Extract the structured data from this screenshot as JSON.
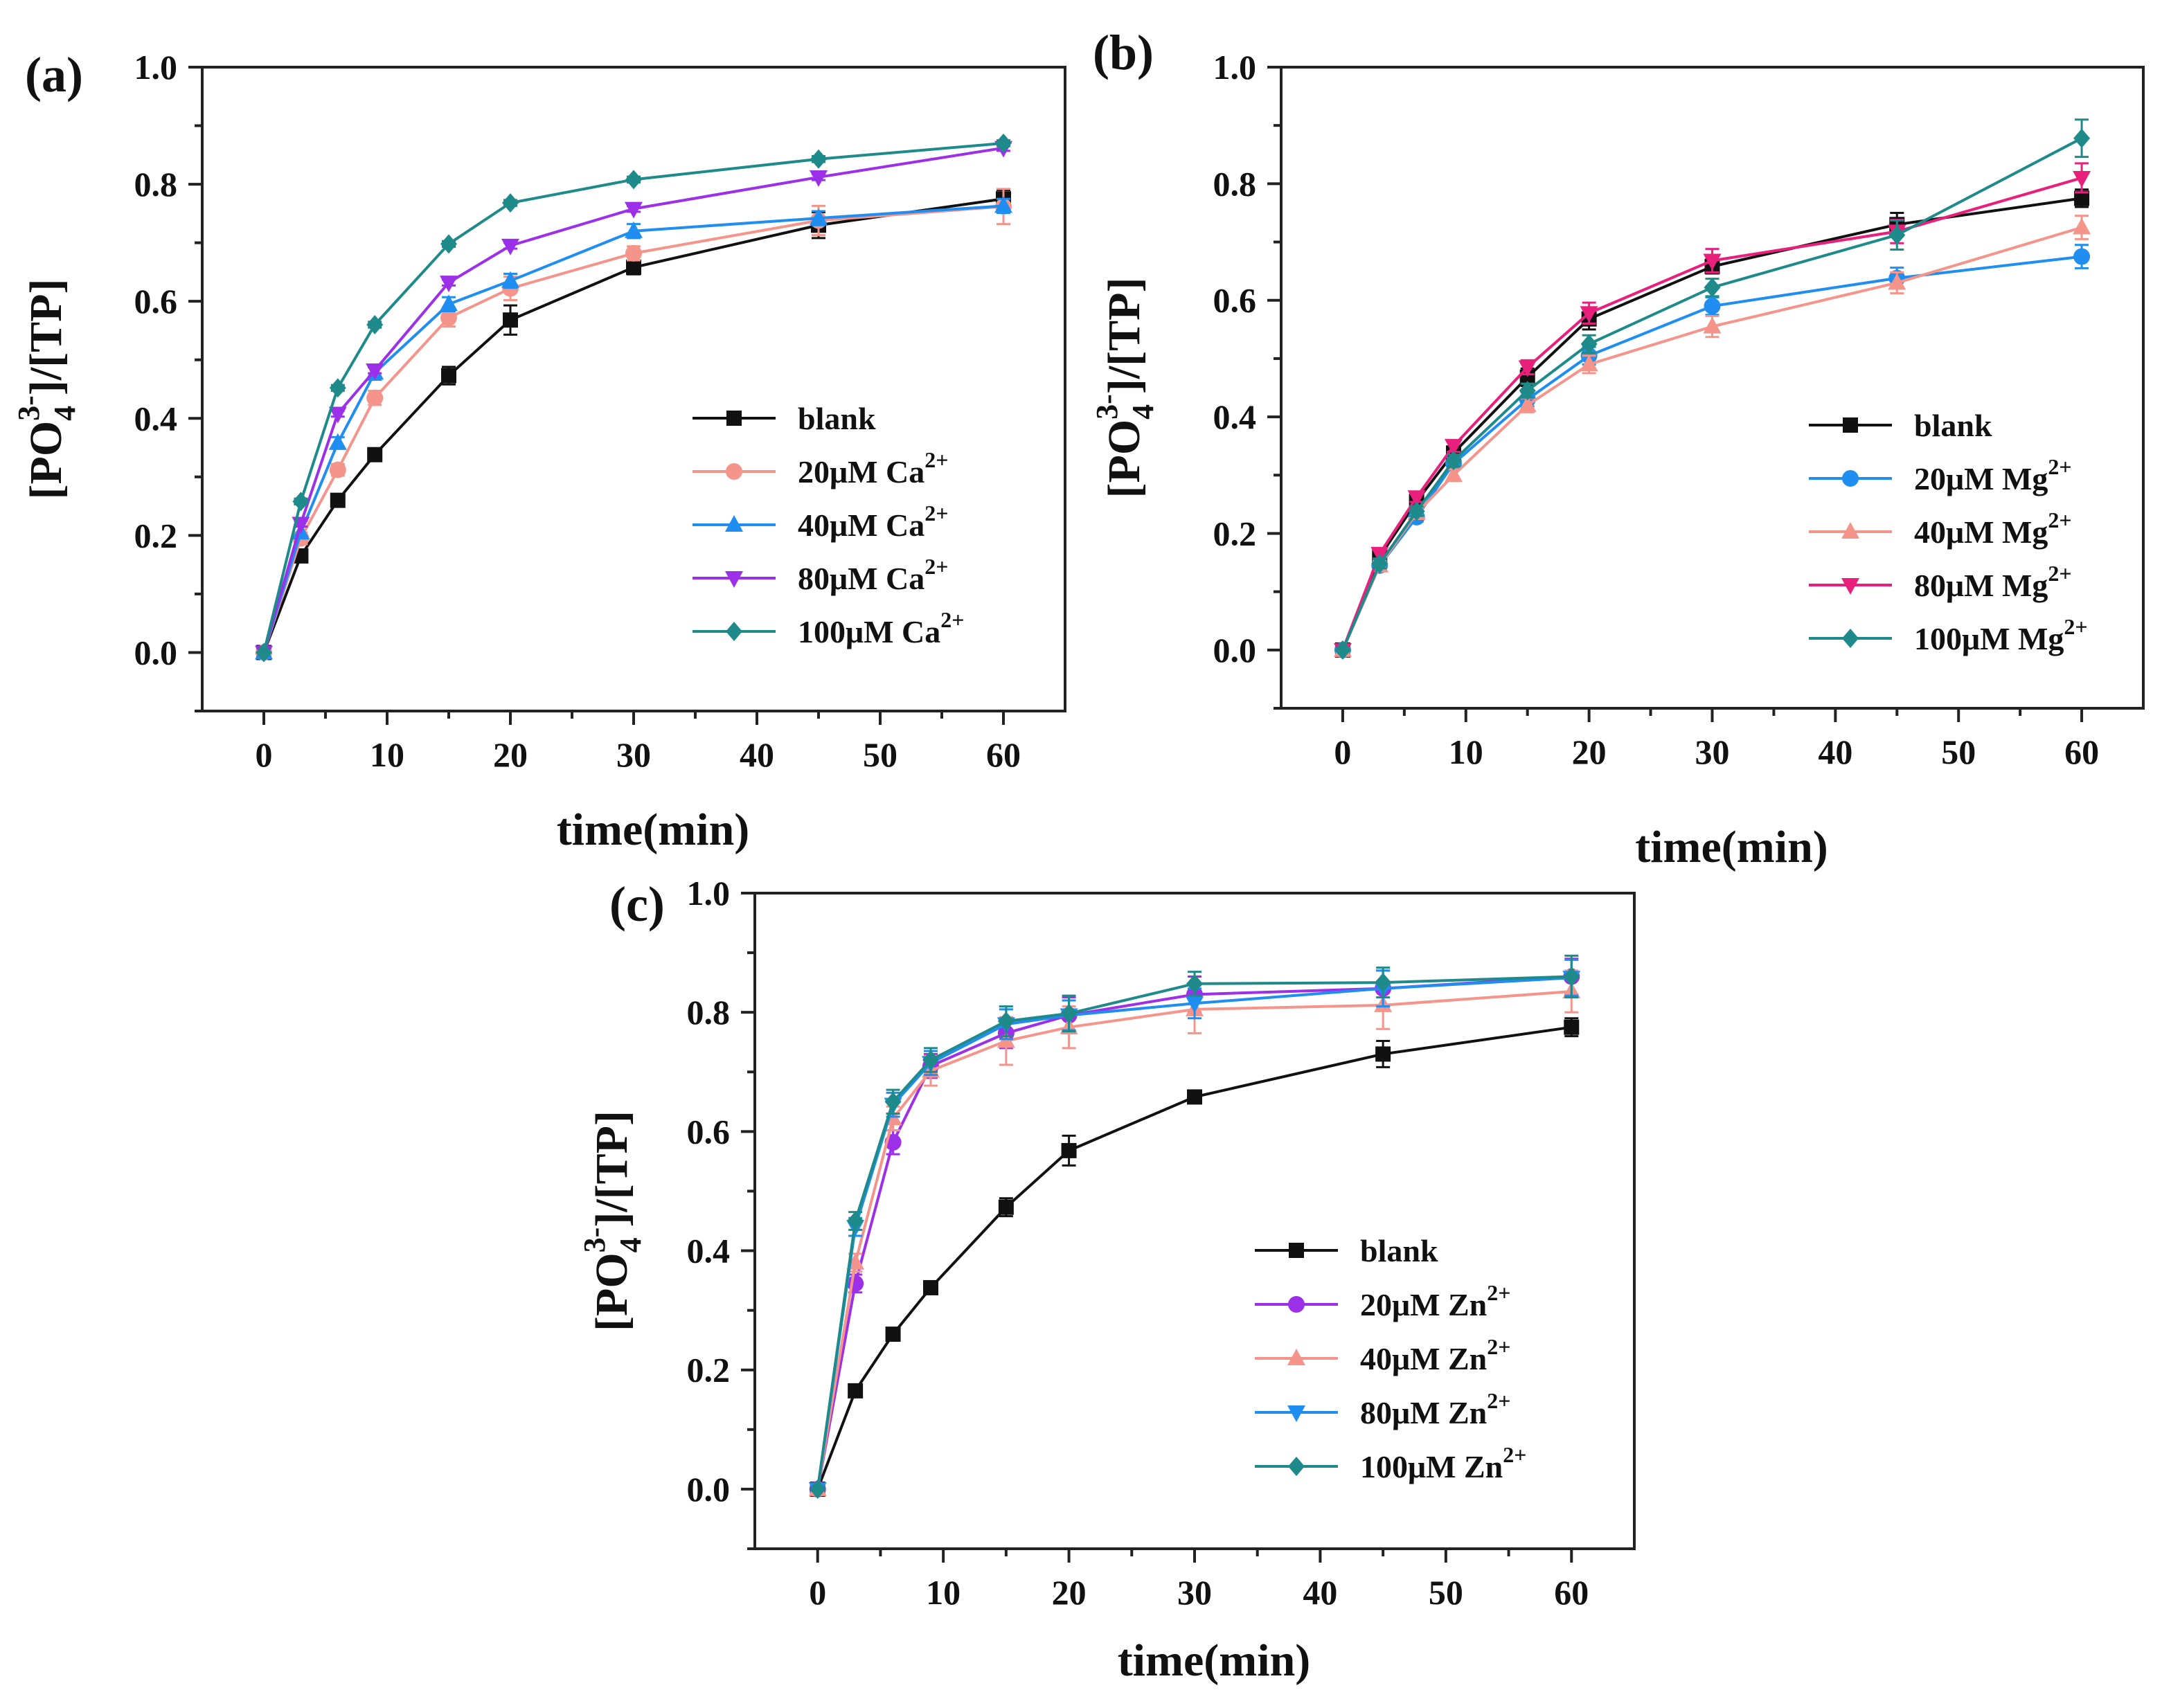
{
  "panels": [
    {
      "label": "(a)",
      "xlabel": "time(min)",
      "ylabel_main": "[PO",
      "ylabel_sub": "4",
      "ylabel_sup": "3-",
      "ylabel_rest": "]/[TP]",
      "xticks": [
        "0",
        "10",
        "20",
        "30",
        "40",
        "50",
        "60"
      ],
      "yticks": [
        "0.0",
        "0.2",
        "0.4",
        "0.6",
        "0.8",
        "1.0"
      ],
      "legend": [
        {
          "base": "blank",
          "sup": ""
        },
        {
          "base": "20μM Ca",
          "sup": "2+"
        },
        {
          "base": "40μM Ca",
          "sup": "2+"
        },
        {
          "base": "80μM Ca",
          "sup": "2+"
        },
        {
          "base": "100μM Ca",
          "sup": "2+"
        }
      ]
    },
    {
      "label": "(b)",
      "xlabel": "time(min)",
      "ylabel_main": "[PO",
      "ylabel_sub": "4",
      "ylabel_sup": "3-",
      "ylabel_rest": "]/[TP]",
      "xticks": [
        "0",
        "10",
        "20",
        "30",
        "40",
        "50",
        "60"
      ],
      "yticks": [
        "0.0",
        "0.2",
        "0.4",
        "0.6",
        "0.8",
        "1.0"
      ],
      "legend": [
        {
          "base": "blank",
          "sup": ""
        },
        {
          "base": "20μM Mg",
          "sup": "2+"
        },
        {
          "base": "40μM Mg",
          "sup": "2+"
        },
        {
          "base": "80μM Mg",
          "sup": "2+"
        },
        {
          "base": "100μM Mg",
          "sup": "2+"
        }
      ]
    },
    {
      "label": "(c)",
      "xlabel": "time(min)",
      "ylabel_main": "[PO",
      "ylabel_sub": "4",
      "ylabel_sup": "3-",
      "ylabel_rest": "]/[TP]",
      "xticks": [
        "0",
        "10",
        "20",
        "30",
        "40",
        "50",
        "60"
      ],
      "yticks": [
        "0.0",
        "0.2",
        "0.4",
        "0.6",
        "0.8",
        "1.0"
      ],
      "legend": [
        {
          "base": "blank",
          "sup": ""
        },
        {
          "base": "20μM Zn",
          "sup": "2+"
        },
        {
          "base": "40μM Zn",
          "sup": "2+"
        },
        {
          "base": "80μM Zn",
          "sup": "2+"
        },
        {
          "base": "100μM Zn",
          "sup": "2+"
        }
      ]
    }
  ],
  "chart_data": [
    {
      "type": "line",
      "panel": "(a)",
      "title": "",
      "xlabel": "time(min)",
      "ylabel": "[PO4 3-]/[TP]",
      "xlim": [
        -5,
        65
      ],
      "ylim": [
        -0.1,
        1.0
      ],
      "x": [
        0,
        3,
        6,
        9,
        15,
        20,
        30,
        45,
        60
      ],
      "series": [
        {
          "name": "blank",
          "color": "#111111",
          "marker": "square",
          "values": [
            0.0,
            0.165,
            0.26,
            0.338,
            0.473,
            0.568,
            0.658,
            0.73,
            0.775
          ],
          "errors": [
            0,
            0.008,
            0.008,
            0.01,
            0.015,
            0.025,
            0.012,
            0.022,
            0.015
          ]
        },
        {
          "name": "20μM Ca2+",
          "color": "#f4948a",
          "marker": "circle",
          "values": [
            0.0,
            0.195,
            0.312,
            0.435,
            0.572,
            0.622,
            0.682,
            0.738,
            0.762
          ],
          "errors": [
            0,
            0.01,
            0.01,
            0.012,
            0.015,
            0.02,
            0.012,
            0.025,
            0.03
          ]
        },
        {
          "name": "40μM Ca2+",
          "color": "#1f8ef0",
          "marker": "triangle-up",
          "values": [
            0.0,
            0.205,
            0.358,
            0.478,
            0.595,
            0.635,
            0.72,
            0.742,
            0.763
          ],
          "errors": [
            0,
            0.01,
            0.01,
            0.012,
            0.012,
            0.012,
            0.012,
            0.012,
            0.012
          ]
        },
        {
          "name": "80μM Ca2+",
          "color": "#9b30e8",
          "marker": "triangle-down",
          "values": [
            0.0,
            0.22,
            0.408,
            0.482,
            0.632,
            0.695,
            0.758,
            0.812,
            0.862
          ],
          "errors": [
            0,
            0.005,
            0.005,
            0.005,
            0.005,
            0.005,
            0.005,
            0.005,
            0.005
          ]
        },
        {
          "name": "100μM Ca2+",
          "color": "#1e8a8a",
          "marker": "diamond",
          "values": [
            0.0,
            0.258,
            0.452,
            0.56,
            0.698,
            0.768,
            0.808,
            0.843,
            0.87
          ],
          "errors": [
            0,
            0.005,
            0.005,
            0.005,
            0.005,
            0.005,
            0.005,
            0.005,
            0.005
          ]
        }
      ],
      "legend_position": "lower-right"
    },
    {
      "type": "line",
      "panel": "(b)",
      "title": "",
      "xlabel": "time(min)",
      "ylabel": "[PO4 3-]/[TP]",
      "xlim": [
        -5,
        65
      ],
      "ylim": [
        -0.1,
        1.0
      ],
      "x": [
        0,
        3,
        6,
        9,
        15,
        20,
        30,
        45,
        60
      ],
      "series": [
        {
          "name": "blank",
          "color": "#111111",
          "marker": "square",
          "values": [
            0.0,
            0.16,
            0.255,
            0.338,
            0.468,
            0.568,
            0.658,
            0.73,
            0.775
          ],
          "errors": [
            0,
            0.008,
            0.008,
            0.01,
            0.015,
            0.018,
            0.012,
            0.02,
            0.015
          ]
        },
        {
          "name": "20μM Mg2+",
          "color": "#1f8ef0",
          "marker": "circle",
          "values": [
            0.0,
            0.145,
            0.228,
            0.32,
            0.43,
            0.505,
            0.59,
            0.638,
            0.675
          ],
          "errors": [
            0,
            0.008,
            0.008,
            0.01,
            0.012,
            0.015,
            0.015,
            0.018,
            0.02
          ]
        },
        {
          "name": "40μM Mg2+",
          "color": "#f4948a",
          "marker": "triangle-up",
          "values": [
            0.0,
            0.145,
            0.235,
            0.3,
            0.42,
            0.49,
            0.555,
            0.63,
            0.725
          ],
          "errors": [
            0,
            0.008,
            0.008,
            0.01,
            0.012,
            0.015,
            0.018,
            0.018,
            0.02
          ]
        },
        {
          "name": "80μM Mg2+",
          "color": "#e8207c",
          "marker": "triangle-down",
          "values": [
            0.0,
            0.165,
            0.262,
            0.35,
            0.485,
            0.578,
            0.668,
            0.718,
            0.81
          ],
          "errors": [
            0,
            0.008,
            0.008,
            0.01,
            0.012,
            0.018,
            0.02,
            0.02,
            0.025
          ]
        },
        {
          "name": "100μM Mg2+",
          "color": "#1e8a8a",
          "marker": "diamond",
          "values": [
            0.0,
            0.148,
            0.238,
            0.325,
            0.445,
            0.525,
            0.622,
            0.712,
            0.878
          ],
          "errors": [
            0,
            0.008,
            0.008,
            0.01,
            0.012,
            0.015,
            0.015,
            0.025,
            0.032
          ]
        }
      ],
      "legend_position": "lower-right"
    },
    {
      "type": "line",
      "panel": "(c)",
      "title": "",
      "xlabel": "time(min)",
      "ylabel": "[PO4 3-]/[TP]",
      "xlim": [
        -5,
        65
      ],
      "ylim": [
        -0.1,
        1.0
      ],
      "x": [
        0,
        3,
        6,
        9,
        15,
        20,
        30,
        45,
        60
      ],
      "series": [
        {
          "name": "blank",
          "color": "#111111",
          "marker": "square",
          "values": [
            0.0,
            0.165,
            0.26,
            0.338,
            0.473,
            0.568,
            0.658,
            0.73,
            0.775
          ],
          "errors": [
            0,
            0.008,
            0.008,
            0.01,
            0.015,
            0.025,
            0.01,
            0.022,
            0.015
          ]
        },
        {
          "name": "20μM Zn2+",
          "color": "#9b30e8",
          "marker": "circle",
          "values": [
            0.0,
            0.345,
            0.582,
            0.71,
            0.765,
            0.795,
            0.83,
            0.84,
            0.86
          ],
          "errors": [
            0,
            0.015,
            0.02,
            0.02,
            0.025,
            0.03,
            0.03,
            0.03,
            0.03
          ]
        },
        {
          "name": "40μM Zn2+",
          "color": "#f4948a",
          "marker": "triangle-up",
          "values": [
            0.0,
            0.38,
            0.622,
            0.702,
            0.752,
            0.775,
            0.805,
            0.812,
            0.835
          ],
          "errors": [
            0,
            0.015,
            0.02,
            0.025,
            0.04,
            0.035,
            0.04,
            0.04,
            0.035
          ]
        },
        {
          "name": "80μM Zn2+",
          "color": "#1f8ef0",
          "marker": "triangle-down",
          "values": [
            0.0,
            0.44,
            0.645,
            0.715,
            0.78,
            0.795,
            0.815,
            0.84,
            0.858
          ],
          "errors": [
            0,
            0.015,
            0.02,
            0.02,
            0.025,
            0.025,
            0.025,
            0.03,
            0.03
          ]
        },
        {
          "name": "100μM Zn2+",
          "color": "#1e8a8a",
          "marker": "diamond",
          "values": [
            0.0,
            0.45,
            0.65,
            0.72,
            0.785,
            0.798,
            0.848,
            0.85,
            0.86
          ],
          "errors": [
            0,
            0.015,
            0.02,
            0.02,
            0.025,
            0.03,
            0.02,
            0.025,
            0.035
          ]
        }
      ],
      "legend_position": "lower-right"
    }
  ]
}
